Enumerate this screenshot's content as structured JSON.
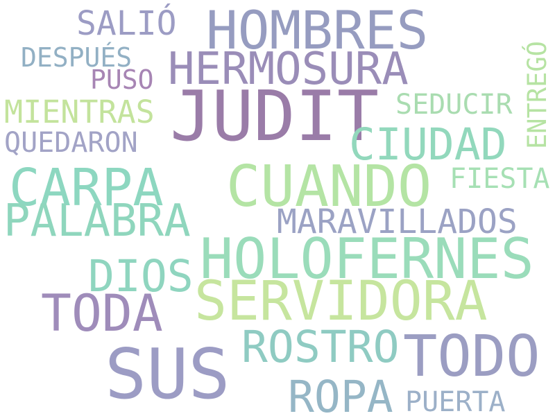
{
  "words": [
    {
      "text": "JUDIT",
      "color": "#9a7ca8"
    },
    {
      "text": "HOMBRES",
      "color": "#969cc0"
    },
    {
      "text": "HERMOSURA",
      "color": "#9a8db8"
    },
    {
      "text": "SALIÓ",
      "color": "#9c9cc4"
    },
    {
      "text": "DESPUÉS",
      "color": "#92b0c4"
    },
    {
      "text": "PUSO",
      "color": "#a785b4"
    },
    {
      "text": "MIENTRAS",
      "color": "#c3e39c"
    },
    {
      "text": "QUEDARON",
      "color": "#a2a3c6"
    },
    {
      "text": "SEDUCIR",
      "color": "#a9dcb0"
    },
    {
      "text": "ENTREGÓ",
      "color": "#b6e3a3"
    },
    {
      "text": "CIUDAD",
      "color": "#92d8bc"
    },
    {
      "text": "CARPA",
      "color": "#8dd7c0"
    },
    {
      "text": "CUANDO",
      "color": "#b4e4a4"
    },
    {
      "text": "FIESTA",
      "color": "#a6e0b4"
    },
    {
      "text": "PALABRA",
      "color": "#8fd6bd"
    },
    {
      "text": "MARAVILLADOS",
      "color": "#9ba2c4"
    },
    {
      "text": "HOLOFERNES",
      "color": "#9adcba"
    },
    {
      "text": "DIOS",
      "color": "#8fd5bf"
    },
    {
      "text": "SERVIDORA",
      "color": "#c6e59e"
    },
    {
      "text": "TODA",
      "color": "#9f8cba"
    },
    {
      "text": "ROSTRO",
      "color": "#8fcbc2"
    },
    {
      "text": "SUS",
      "color": "#9c9cc4"
    },
    {
      "text": "TODO",
      "color": "#9b9dc2"
    },
    {
      "text": "ROPA",
      "color": "#95b6c6"
    },
    {
      "text": "PUERTA",
      "color": "#9cb0c8"
    }
  ]
}
